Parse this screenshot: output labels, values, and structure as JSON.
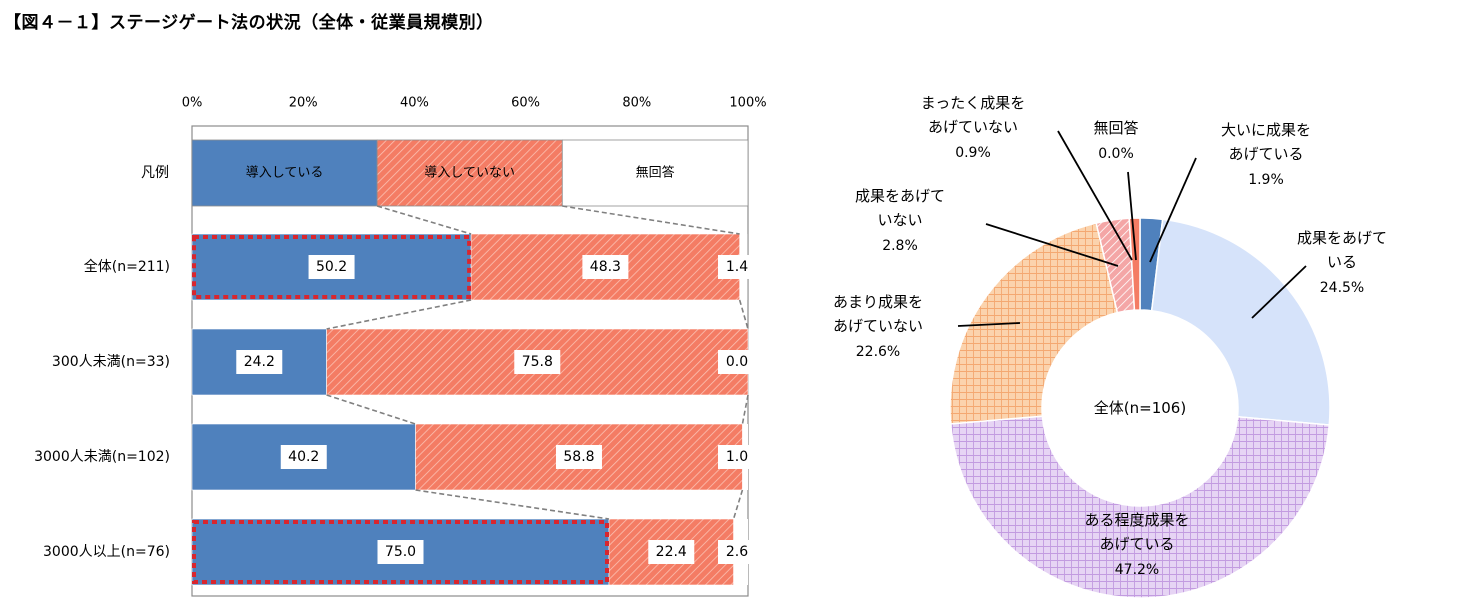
{
  "title": "【図４－１】ステージゲート法の状況（全体・従業員規模別）",
  "colors": {
    "introduced": "#4f81bd",
    "not_introduced": "#f47c64",
    "no_answer": "#ffffff",
    "great_result": "#4f81bd",
    "some_result": "#d6e3fa",
    "moderate_result": "#e6d4f4",
    "little_result": "#fbd3ad",
    "no_result": "#f4a6a6",
    "none_result": "#f47c64",
    "highlight": "#d9262e"
  },
  "chart_data": [
    {
      "type": "bar",
      "orientation": "horizontal",
      "stacked": "percent",
      "x_ticks": [
        "0%",
        "20%",
        "40%",
        "60%",
        "80%",
        "100%"
      ],
      "xlim": [
        0,
        100
      ],
      "legend_row": {
        "label": "凡例",
        "entries": [
          "導入している",
          "導入していない",
          "無回答"
        ],
        "values": [
          33.3,
          33.3,
          33.4
        ]
      },
      "categories": [
        "全体(n=211)",
        "300人未満(n=33)",
        "3000人未満(n=102)",
        "3000人以上(n=76)"
      ],
      "series": [
        {
          "name": "導入している",
          "values": [
            50.2,
            24.2,
            40.2,
            75.0
          ]
        },
        {
          "name": "導入していない",
          "values": [
            48.3,
            75.8,
            58.8,
            22.4
          ]
        },
        {
          "name": "無回答",
          "values": [
            1.4,
            0.0,
            1.0,
            2.6
          ]
        }
      ],
      "value_labels": [
        [
          "50.2",
          "48.3",
          "1.4"
        ],
        [
          "24.2",
          "75.8",
          "0.0"
        ],
        [
          "40.2",
          "58.8",
          "1.0"
        ],
        [
          "75.0",
          "22.4",
          "2.6"
        ]
      ],
      "highlighted_rows": [
        "全体(n=211)",
        "3000人以上(n=76)"
      ]
    },
    {
      "type": "pie",
      "donut": true,
      "center_label": "全体(n=106)",
      "slices": [
        {
          "label": "大いに成果をあげている",
          "lines": [
            "大いに成果を",
            "あげている"
          ],
          "value": 1.9,
          "value_label": "1.9%"
        },
        {
          "label": "成果をあげている",
          "lines": [
            "成果をあげて",
            "いる"
          ],
          "value": 24.5,
          "value_label": "24.5%"
        },
        {
          "label": "ある程度成果をあげている",
          "lines": [
            "ある程度成果を",
            "あげている"
          ],
          "value": 47.2,
          "value_label": "47.2%"
        },
        {
          "label": "あまり成果をあげていない",
          "lines": [
            "あまり成果を",
            "あげていない"
          ],
          "value": 22.6,
          "value_label": "22.6%"
        },
        {
          "label": "成果をあげていない",
          "lines": [
            "成果をあげて",
            "いない"
          ],
          "value": 2.8,
          "value_label": "2.8%"
        },
        {
          "label": "まったく成果をあげていない",
          "lines": [
            "まったく成果を",
            "あげていない"
          ],
          "value": 0.9,
          "value_label": "0.9%"
        },
        {
          "label": "無回答",
          "lines": [
            "無回答"
          ],
          "value": 0.0,
          "value_label": "0.0%"
        }
      ]
    }
  ]
}
